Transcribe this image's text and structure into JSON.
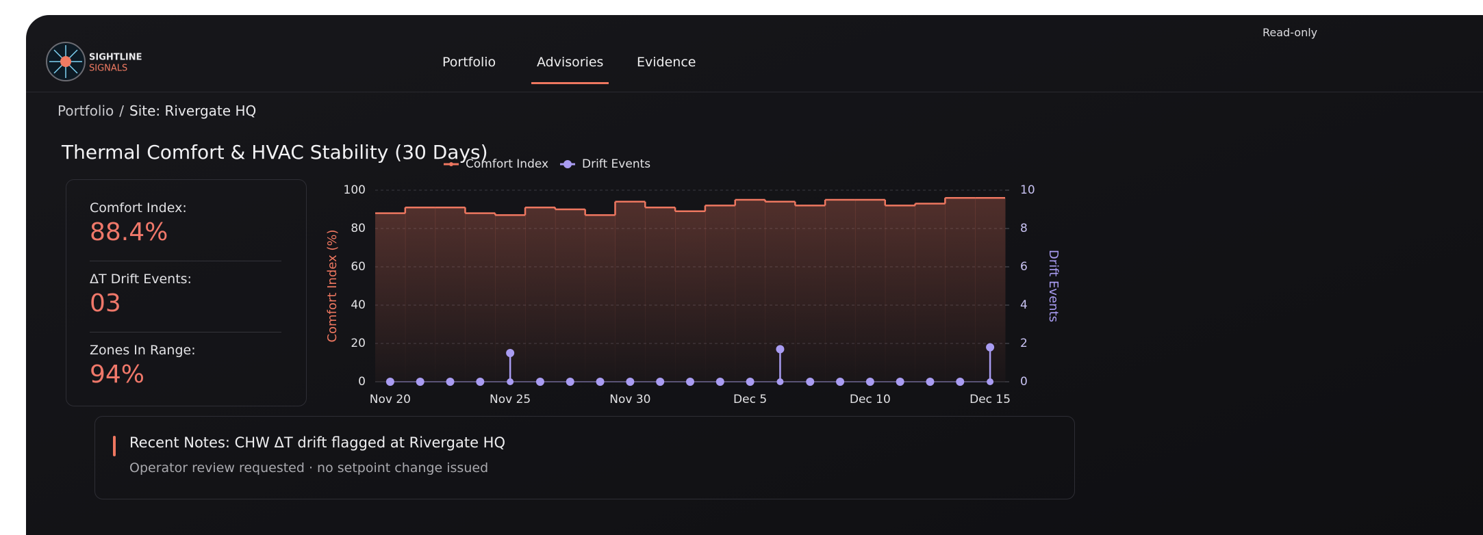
{
  "brand": {
    "line1": "SIGHTLINE",
    "line2": "SIGNALS"
  },
  "nav": [
    "Portfolio",
    "Advisories",
    "Evidence"
  ],
  "mode": "Read-only",
  "breadcrumb": [
    "Portfolio",
    "Site: Rivergate HQ"
  ],
  "breadcrumb_separator": "/",
  "title": "Thermal Comfort & HVAC Stability (30 Days)",
  "stats": [
    {
      "label": "Comfort Index:",
      "value": "88.4%"
    },
    {
      "label": "ΔT Drift Events:",
      "value": "03"
    },
    {
      "label": "Zones In Range:",
      "value": "94%"
    }
  ],
  "chart_data": {
    "type": "line",
    "categories": [
      "Nov 20",
      null,
      null,
      null,
      "Nov 25",
      null,
      null,
      null,
      "Nov 30",
      null,
      null,
      null,
      "Dec 5",
      null,
      null,
      null,
      "Dec 10",
      null,
      null,
      null,
      "Dec 15"
    ],
    "series": [
      {
        "name": "Comfort Index",
        "color": "#ee7760",
        "step": true,
        "fill": true,
        "values": [
          88,
          91,
          91,
          88,
          87,
          91,
          90,
          87,
          94,
          91,
          89,
          92,
          95,
          94,
          92,
          95,
          95,
          92,
          93,
          96,
          96
        ]
      },
      {
        "name": "Drift Events",
        "color": "#a99cf2",
        "axis": "y2",
        "stem": true,
        "values": [
          0,
          0,
          0,
          0,
          1.5,
          0,
          0,
          0,
          0,
          0,
          0,
          0,
          0,
          1.7,
          0,
          0,
          0,
          0,
          0,
          0,
          1.8
        ]
      }
    ],
    "ylabel": "Comfort Index (%)",
    "y2label": "Drift Events",
    "ylim": [
      0,
      100
    ],
    "yticks": [
      0,
      20,
      40,
      60,
      80,
      100
    ],
    "y2lim": [
      0,
      10
    ],
    "y2ticks": [
      0,
      2,
      4,
      6,
      8,
      10
    ],
    "grid": true
  },
  "notes": {
    "title": "Recent Notes: CHW ΔT drift flagged at Rivergate HQ",
    "detail": "Operator review requested · no setpoint change issued"
  }
}
